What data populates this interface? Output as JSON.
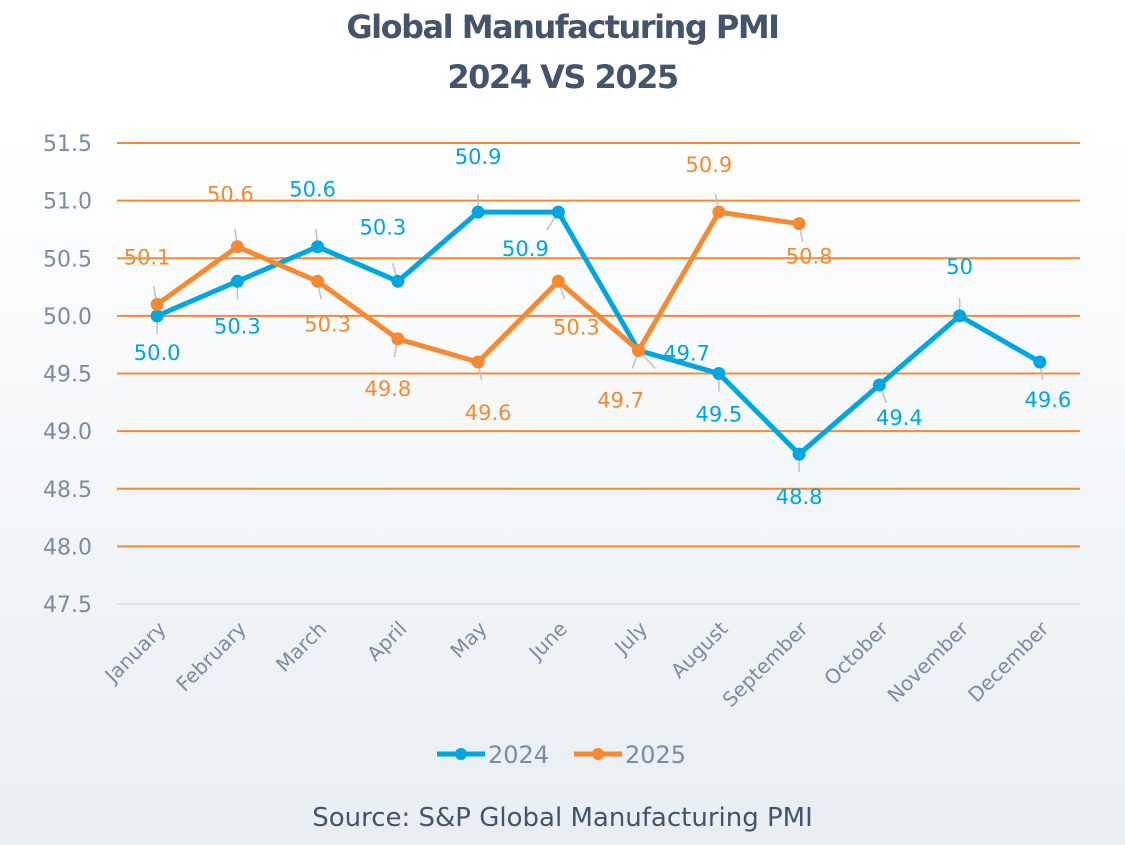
{
  "chart_data": {
    "type": "line",
    "title": "Global Manufacturing PMI",
    "subtitle": "2024 VS 2025",
    "xlabel": "",
    "ylabel": "",
    "categories": [
      "January",
      "February",
      "March",
      "April",
      "May",
      "June",
      "July",
      "August",
      "September",
      "October",
      "November",
      "December"
    ],
    "ylim": [
      47.5,
      51.5
    ],
    "yticks": [
      "51.5",
      "51.0",
      "50.5",
      "50.0",
      "49.5",
      "49.0",
      "48.5",
      "48.0",
      "47.5"
    ],
    "grid": true,
    "legend_position": "bottom",
    "series": [
      {
        "name": "2024",
        "color": "#00a6e0",
        "values": [
          50.0,
          50.3,
          50.6,
          50.3,
          50.9,
          50.9,
          49.7,
          49.5,
          48.8,
          49.4,
          50.0,
          49.6
        ],
        "labels": [
          "50.0",
          "50.3",
          "50.6",
          "50.3",
          "50.9",
          "50.9",
          "49.7",
          "49.5",
          "48.8",
          "49.4",
          "50",
          "49.6"
        ]
      },
      {
        "name": "2025",
        "color": "#f58a33",
        "values": [
          50.1,
          50.6,
          50.3,
          49.8,
          49.6,
          50.3,
          49.7,
          50.9,
          50.8
        ],
        "labels": [
          "50.1",
          "50.6",
          "50.3",
          "49.8",
          "49.6",
          "50.3",
          "49.7",
          "50.9",
          "50.8"
        ]
      }
    ],
    "gridline_color": "#f58a33",
    "source": "Source: S&P Global Manufacturing PMI"
  }
}
